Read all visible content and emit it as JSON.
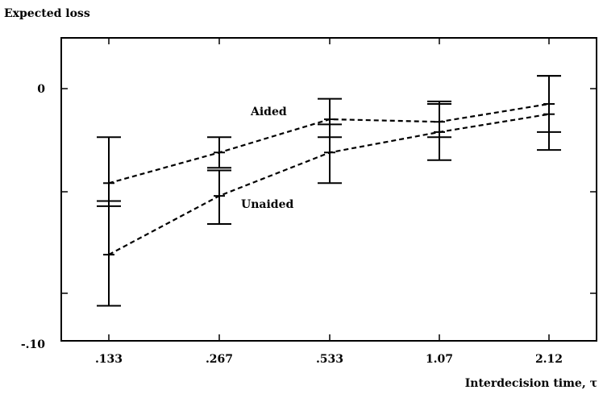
{
  "chart_data": {
    "type": "line",
    "ylabel": "Expected loss",
    "xlabel": "Interdecision time, τ",
    "categories": [
      ".133",
      ".267",
      ".533",
      "1.07",
      "2.12"
    ],
    "y_ticks": [
      "0",
      "-.10"
    ],
    "y_tick_values": [
      0,
      -0.1
    ],
    "ylim": [
      -0.1,
      0.017
    ],
    "grid": false,
    "series": [
      {
        "name": "Aided",
        "values": [
          -0.037,
          -0.025,
          -0.012,
          -0.013,
          -0.006
        ],
        "err_low": [
          -0.046,
          -0.031,
          -0.019,
          -0.019,
          -0.017
        ],
        "err_high": [
          -0.019,
          -0.019,
          -0.004,
          -0.005,
          0.005
        ]
      },
      {
        "name": "Unaided",
        "values": [
          -0.065,
          -0.042,
          -0.025,
          -0.017,
          -0.01
        ],
        "err_low": [
          -0.085,
          -0.053,
          -0.037,
          -0.028,
          -0.024
        ],
        "err_high": [
          -0.044,
          -0.032,
          -0.014,
          -0.006,
          0.005
        ]
      }
    ]
  }
}
